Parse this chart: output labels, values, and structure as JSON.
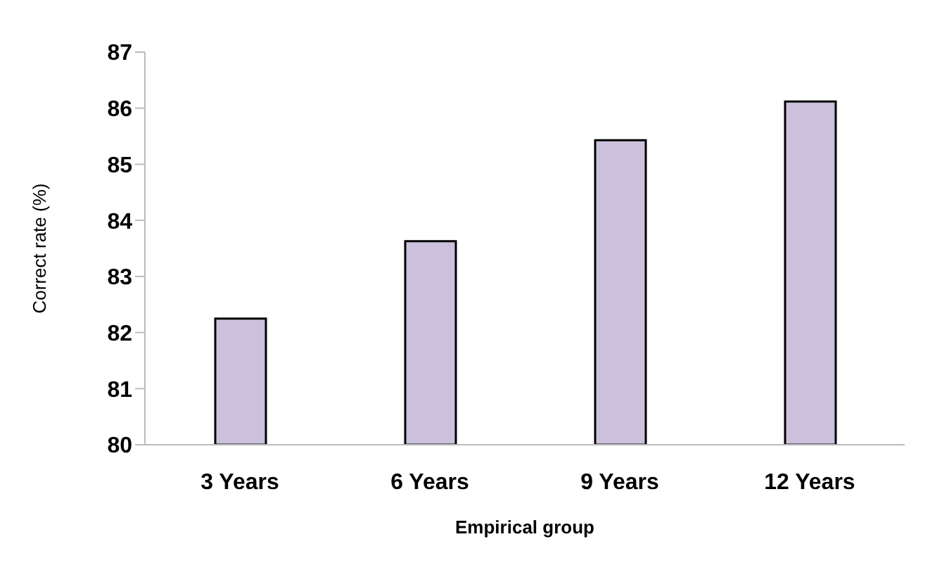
{
  "chart_data": {
    "type": "bar",
    "xlabel": "Empirical group",
    "ylabel": "Correct rate (%)",
    "categories": [
      "3 Years",
      "6 Years",
      "9 Years",
      "12 Years"
    ],
    "values": [
      82.25,
      83.63,
      85.43,
      86.12
    ],
    "color": "#ccc1dc",
    "ylim": [
      80,
      87
    ],
    "yticks": [
      80,
      81,
      82,
      83,
      84,
      85,
      86,
      87
    ],
    "grid": false
  }
}
